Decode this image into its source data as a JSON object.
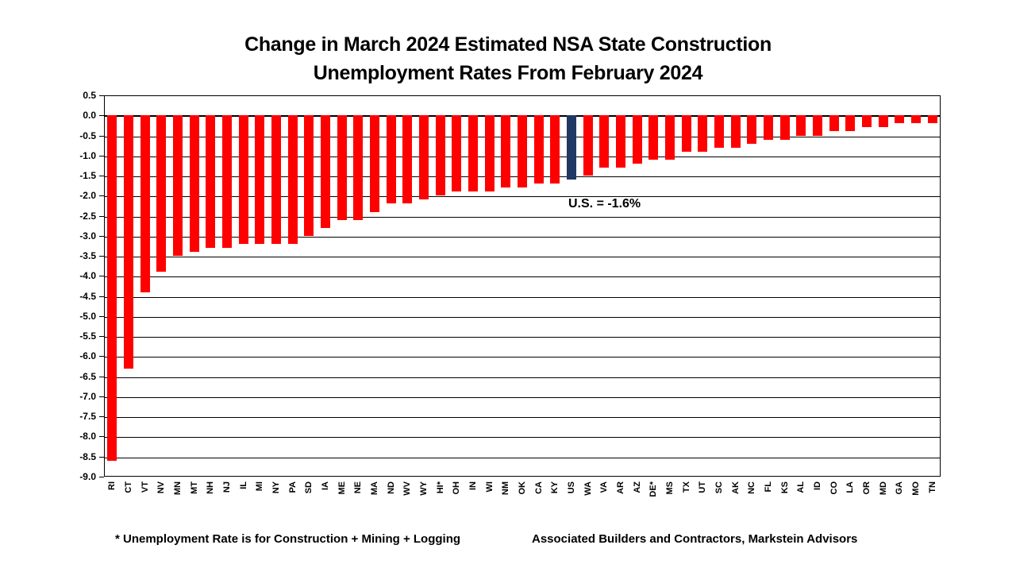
{
  "title": {
    "line1": "Change in March 2024 Estimated NSA State Construction",
    "line2": "Unemployment Rates From February 2024"
  },
  "annotation": "U.S. = -1.6%",
  "footer": {
    "note": "* Unemployment Rate is for Construction + Mining + Logging",
    "credit": "Associated Builders and Contractors, Markstein Advisors"
  },
  "colors": {
    "bar": "#ff0000",
    "us_bar": "#1f3864",
    "grid": "#000000",
    "background": "#ffffff"
  },
  "chart_data": {
    "type": "bar",
    "title": "Change in March 2024 Estimated NSA State Construction Unemployment Rates From February 2024",
    "xlabel": "",
    "ylabel": "",
    "ylim": [
      -9.0,
      0.5
    ],
    "ytick_step": 0.5,
    "grid": true,
    "legend": false,
    "highlight_category": "US",
    "highlight_note": "U.S. = -1.6%",
    "categories": [
      "RI",
      "CT",
      "VT",
      "NV",
      "MN",
      "MT",
      "NH",
      "NJ",
      "IL",
      "MI",
      "NY",
      "PA",
      "SD",
      "IA",
      "ME",
      "NE",
      "MA",
      "ND",
      "WV",
      "WY",
      "HI*",
      "OH",
      "IN",
      "WI",
      "NM",
      "OK",
      "CA",
      "KY",
      "US",
      "WA",
      "VA",
      "AR",
      "AZ",
      "DE*",
      "MS",
      "TX",
      "UT",
      "SC",
      "AK",
      "NC",
      "FL",
      "KS",
      "AL",
      "ID",
      "CO",
      "LA",
      "OR",
      "MD",
      "GA",
      "MO",
      "TN"
    ],
    "values": [
      -8.6,
      -6.3,
      -4.4,
      -3.9,
      -3.5,
      -3.4,
      -3.3,
      -3.3,
      -3.2,
      -3.2,
      -3.2,
      -3.2,
      -3.0,
      -2.8,
      -2.6,
      -2.6,
      -2.4,
      -2.2,
      -2.2,
      -2.1,
      -2.0,
      -1.9,
      -1.9,
      -1.9,
      -1.8,
      -1.8,
      -1.7,
      -1.7,
      -1.6,
      -1.5,
      -1.3,
      -1.3,
      -1.2,
      -1.1,
      -1.1,
      -0.9,
      -0.9,
      -0.8,
      -0.8,
      -0.7,
      -0.6,
      -0.6,
      -0.5,
      -0.5,
      -0.4,
      -0.4,
      -0.3,
      -0.3,
      -0.2,
      -0.2,
      -0.2
    ]
  }
}
